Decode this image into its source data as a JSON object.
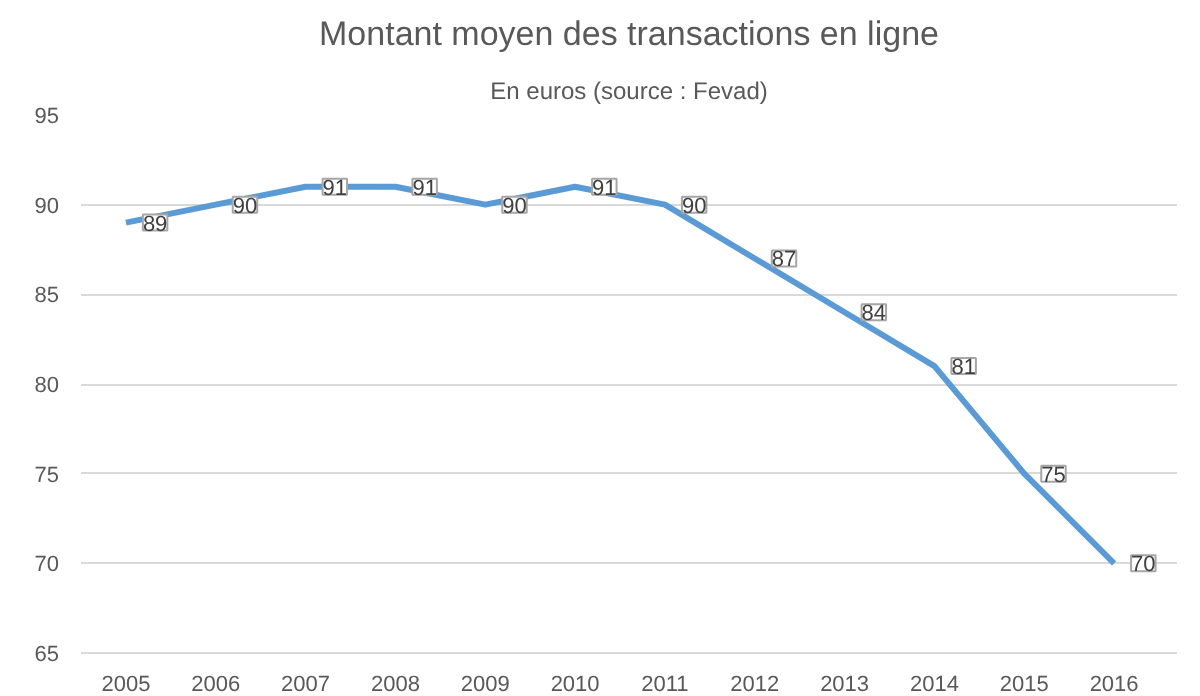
{
  "chart_data": {
    "type": "line",
    "title": "Montant moyen des transactions en ligne",
    "subtitle": "En euros (source : Fevad)",
    "categories": [
      "2005",
      "2006",
      "2007",
      "2008",
      "2009",
      "2010",
      "2011",
      "2012",
      "2013",
      "2014",
      "2015",
      "2016"
    ],
    "series": [
      {
        "color": "#5b9bd5",
        "values": [
          89,
          90,
          91,
          91,
          90,
          91,
          90,
          87,
          84,
          81,
          75,
          70
        ]
      }
    ],
    "ylim": [
      65,
      95
    ],
    "yticks": [
      65,
      70,
      75,
      80,
      85,
      90,
      95
    ],
    "grid": "y",
    "data_labels": true,
    "marker": "none",
    "line_style": "solid"
  }
}
